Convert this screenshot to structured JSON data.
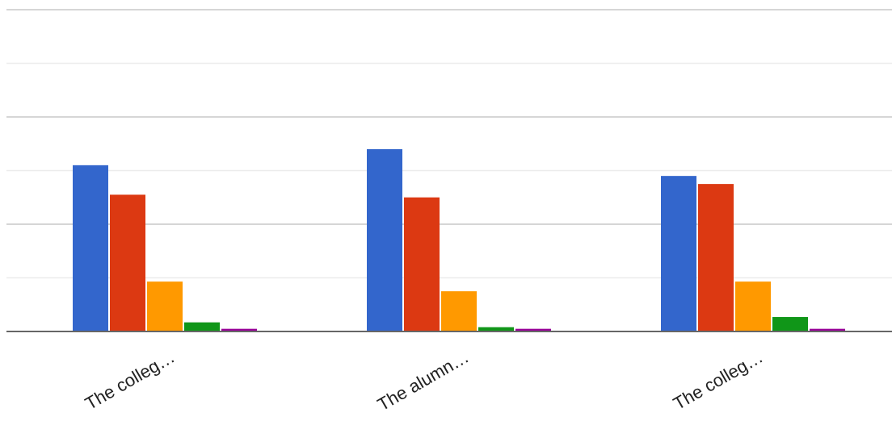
{
  "chart_data": {
    "type": "bar",
    "categories": [
      "The colleg…",
      "The alumn…",
      "The colleg…"
    ],
    "series": [
      {
        "values": [
          31,
          34,
          29
        ],
        "color": "#3366cc"
      },
      {
        "values": [
          25.5,
          25,
          27.5
        ],
        "color": "#dc3912"
      },
      {
        "values": [
          9.3,
          7.5,
          9.3
        ],
        "color": "#ff9900"
      },
      {
        "values": [
          1.7,
          0.8,
          2.7
        ],
        "color": "#109618"
      },
      {
        "values": [
          0.5,
          0.5,
          0.5
        ],
        "color": "#990099"
      }
    ],
    "ylim": [
      0,
      60
    ],
    "gridlines": [
      10,
      20,
      30,
      40,
      50,
      60
    ],
    "grid": true,
    "legend": "none"
  }
}
